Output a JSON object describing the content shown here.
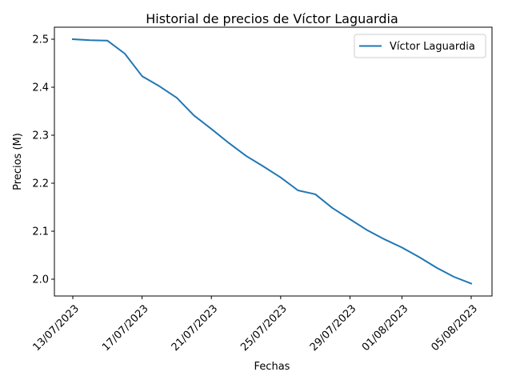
{
  "chart_data": {
    "type": "line",
    "title": "Historial de precios de Víctor Laguardia",
    "xlabel": "Fechas",
    "ylabel": "Precios (M)",
    "x_tick_labels": [
      "13/07/2023",
      "17/07/2023",
      "21/07/2023",
      "25/07/2023",
      "29/07/2023",
      "01/08/2023",
      "05/08/2023"
    ],
    "y_ticks": [
      2.0,
      2.1,
      2.2,
      2.3,
      2.4,
      2.5
    ],
    "y_tick_labels": [
      "2.0",
      "2.1",
      "2.2",
      "2.3",
      "2.4",
      "2.5"
    ],
    "ylim": [
      1.965,
      2.525
    ],
    "grid": false,
    "legend_position": "top-right",
    "series": [
      {
        "name": "Víctor Laguardia",
        "color": "#1f77b4",
        "x": [
          "13/07/2023",
          "14/07/2023",
          "15/07/2023",
          "16/07/2023",
          "17/07/2023",
          "18/07/2023",
          "19/07/2023",
          "20/07/2023",
          "21/07/2023",
          "22/07/2023",
          "23/07/2023",
          "24/07/2023",
          "25/07/2023",
          "26/07/2023",
          "27/07/2023",
          "28/07/2023",
          "29/07/2023",
          "30/07/2023",
          "31/07/2023",
          "01/08/2023",
          "02/08/2023",
          "03/08/2023",
          "04/08/2023",
          "05/08/2023"
        ],
        "values": [
          2.5,
          2.498,
          2.497,
          2.47,
          2.423,
          2.402,
          2.378,
          2.341,
          2.313,
          2.284,
          2.257,
          2.235,
          2.212,
          2.185,
          2.177,
          2.148,
          2.125,
          2.102,
          2.083,
          2.066,
          2.046,
          2.024,
          2.005,
          1.991
        ]
      }
    ]
  }
}
